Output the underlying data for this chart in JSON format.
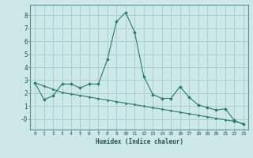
{
  "xlabel": "Humidex (Indice chaleur)",
  "x": [
    0,
    1,
    2,
    3,
    4,
    5,
    6,
    7,
    8,
    9,
    10,
    11,
    12,
    13,
    14,
    15,
    16,
    17,
    18,
    19,
    20,
    21,
    22,
    23
  ],
  "y_curve": [
    2.8,
    1.5,
    1.8,
    2.7,
    2.7,
    2.4,
    2.7,
    2.7,
    4.6,
    7.5,
    8.2,
    6.7,
    3.3,
    1.9,
    1.6,
    1.6,
    2.5,
    1.7,
    1.1,
    0.9,
    0.7,
    0.8,
    -0.1,
    -0.4
  ],
  "y_line": [
    2.8,
    2.55,
    2.3,
    2.05,
    1.93,
    1.82,
    1.7,
    1.58,
    1.47,
    1.35,
    1.23,
    1.12,
    1.0,
    0.88,
    0.77,
    0.65,
    0.53,
    0.42,
    0.3,
    0.18,
    0.07,
    -0.05,
    -0.17,
    -0.35
  ],
  "line_color": "#2a7d62",
  "bg_color": "#cce8e8",
  "grid_color": "#aacfcf",
  "ylim": [
    -0.8,
    8.8
  ],
  "xlim": [
    -0.5,
    23.5
  ],
  "yticks": [
    0,
    1,
    2,
    3,
    4,
    5,
    6,
    7,
    8
  ],
  "ytick_labels": [
    "-0",
    "1",
    "2",
    "3",
    "4",
    "5",
    "6",
    "7",
    "8"
  ],
  "xticks": [
    0,
    1,
    2,
    3,
    4,
    5,
    6,
    7,
    8,
    9,
    10,
    11,
    12,
    13,
    14,
    15,
    16,
    17,
    18,
    19,
    20,
    21,
    22,
    23
  ]
}
